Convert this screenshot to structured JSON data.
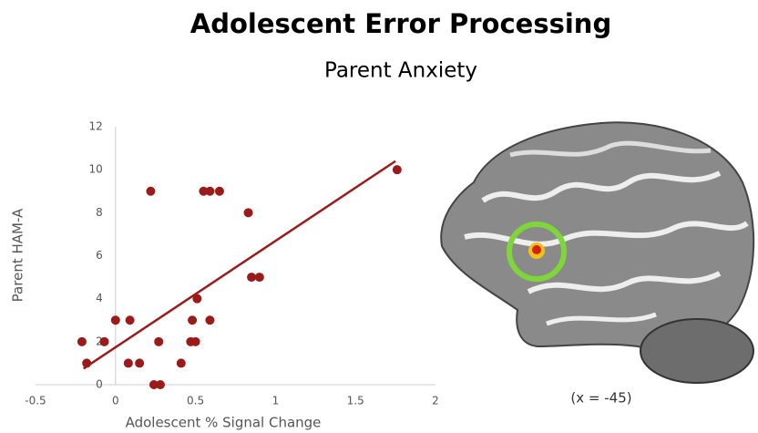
{
  "title": "Adolescent Error Processing",
  "subtitle": "Parent Anxiety",
  "chart_data": {
    "type": "scatter",
    "x_label": "Adolescent % Signal Change",
    "y_label": "Parent HAM-A",
    "x": [
      -0.21,
      -0.18,
      -0.07,
      0,
      0.09,
      0.08,
      0.15,
      0.22,
      0.24,
      0.28,
      0.27,
      0.41,
      0.47,
      0.5,
      0.48,
      0.51,
      0.59,
      0.55,
      0.59,
      0.65,
      0.83,
      0.85,
      0.9,
      1.76
    ],
    "y": [
      2,
      1,
      2,
      3,
      3,
      1,
      1,
      9,
      0,
      0,
      2,
      1,
      2,
      2,
      3,
      4,
      3,
      9,
      9,
      9,
      8,
      5,
      5,
      10
    ],
    "color": "#9b1b1b",
    "trendline": {
      "x": [
        -0.2,
        1.75
      ],
      "y": [
        0.75,
        10.4
      ],
      "color": "#9b1b1b"
    },
    "xlim": [
      -0.5,
      2
    ],
    "xticks": [
      -0.5,
      0,
      0.5,
      1,
      1.5,
      2
    ],
    "ylim": [
      0,
      12
    ],
    "yticks": [
      0,
      2,
      4,
      6,
      8,
      10,
      12
    ],
    "grid": false
  },
  "image": {
    "caption": "(x = -45)"
  }
}
